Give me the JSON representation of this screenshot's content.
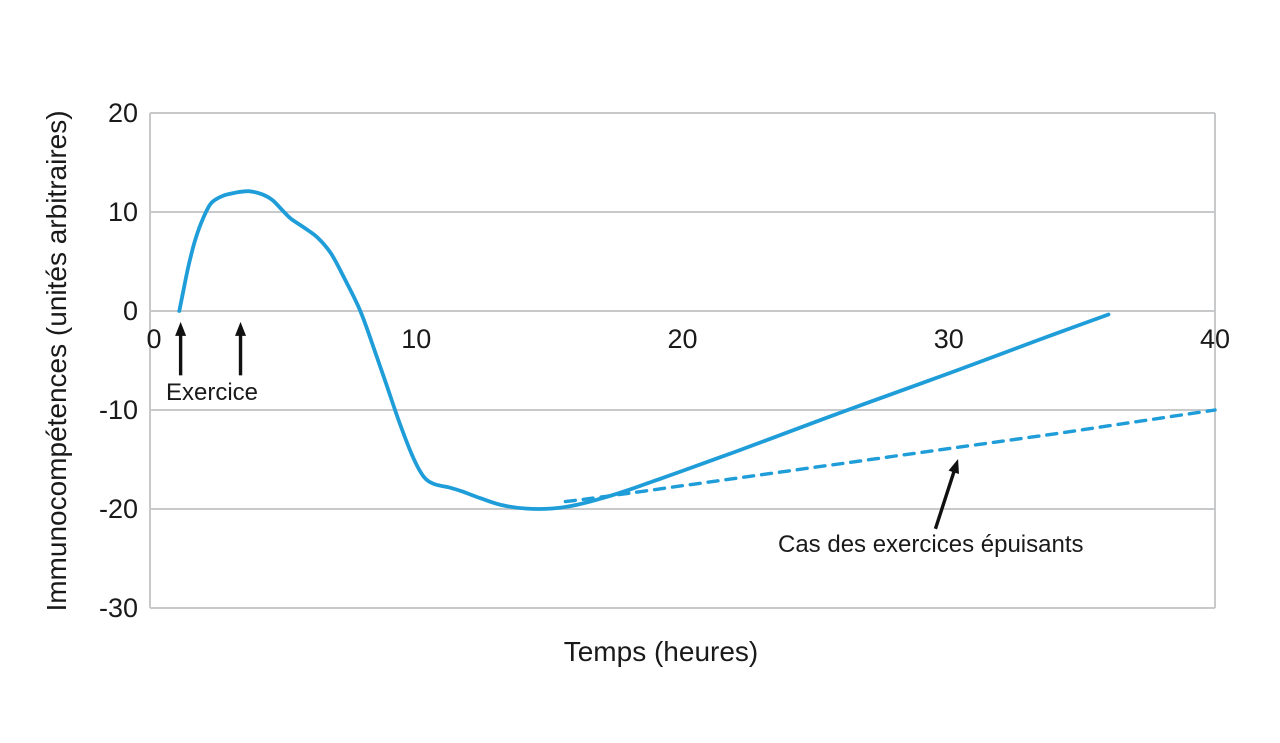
{
  "colors": {
    "curve": "#1E9DD8",
    "grid": "#C8C9CB",
    "text": "#1A1A1A",
    "background": "#FFFFFF",
    "arrow": "#111111"
  },
  "chart_data": {
    "type": "line",
    "title": "",
    "xlabel": "Temps (heures)",
    "ylabel": "Immunocompétences (unités arbitraires)",
    "xlim": [
      0,
      40
    ],
    "ylim": [
      -30,
      20
    ],
    "grid": "horizontal",
    "legend": "none",
    "x_ticks": {
      "values": [
        0,
        10,
        20,
        30,
        40
      ],
      "labels": [
        "0",
        "10",
        "20",
        "30",
        "40"
      ]
    },
    "y_ticks": {
      "values": [
        20,
        10,
        0,
        -10,
        -20,
        -30
      ],
      "labels": [
        "20",
        "10",
        "0",
        "-10",
        "-20",
        "-30"
      ]
    },
    "series": [
      {
        "id": "immune-response-curve",
        "style": "solid",
        "points": [
          [
            1.1,
            0
          ],
          [
            1.25,
            2.0
          ],
          [
            1.45,
            4.6
          ],
          [
            1.7,
            7.2
          ],
          [
            2.0,
            9.4
          ],
          [
            2.3,
            10.9
          ],
          [
            2.7,
            11.6
          ],
          [
            3.2,
            11.95
          ],
          [
            3.7,
            12.1
          ],
          [
            4.2,
            11.8
          ],
          [
            4.6,
            11.2
          ],
          [
            5.0,
            10.1
          ],
          [
            5.3,
            9.3
          ],
          [
            5.8,
            8.4
          ],
          [
            6.3,
            7.4
          ],
          [
            6.8,
            5.8
          ],
          [
            7.3,
            3.3
          ],
          [
            7.9,
            0.0
          ],
          [
            8.4,
            -3.7
          ],
          [
            8.9,
            -7.6
          ],
          [
            9.4,
            -11.5
          ],
          [
            9.9,
            -14.9
          ],
          [
            10.3,
            -16.8
          ],
          [
            10.7,
            -17.5
          ],
          [
            11.2,
            -17.8
          ],
          [
            11.7,
            -18.2
          ],
          [
            12.4,
            -18.9
          ],
          [
            13.2,
            -19.6
          ],
          [
            14.1,
            -19.95
          ],
          [
            15.1,
            -19.95
          ],
          [
            16.0,
            -19.6
          ],
          [
            17.0,
            -18.9
          ],
          [
            18.0,
            -18.05
          ],
          [
            19.0,
            -17.1
          ],
          [
            20.0,
            -16.15
          ],
          [
            22.0,
            -14.2
          ],
          [
            24.0,
            -12.2
          ],
          [
            26.0,
            -10.2
          ],
          [
            28.0,
            -8.25
          ],
          [
            30.0,
            -6.3
          ],
          [
            32.0,
            -4.3
          ],
          [
            34.0,
            -2.3
          ],
          [
            36.0,
            -0.35
          ]
        ]
      },
      {
        "id": "exhausting-exercise-curve",
        "style": "dashed",
        "points": [
          [
            15.6,
            -19.25
          ],
          [
            16.5,
            -18.95
          ],
          [
            18.0,
            -18.4
          ],
          [
            20.0,
            -17.65
          ],
          [
            22.0,
            -16.9
          ],
          [
            24.0,
            -16.15
          ],
          [
            26.0,
            -15.4
          ],
          [
            28.0,
            -14.65
          ],
          [
            30.0,
            -13.9
          ],
          [
            32.0,
            -13.15
          ],
          [
            34.0,
            -12.4
          ],
          [
            36.0,
            -11.6
          ],
          [
            38.0,
            -10.8
          ],
          [
            40.0,
            -10.0
          ]
        ]
      }
    ],
    "annotations": {
      "exercise": {
        "label": "Exercice",
        "arrow_times": [
          1.15,
          3.4
        ],
        "arrow_y_from": -6.5,
        "arrow_y_to": -1.1
      },
      "exhausting": {
        "label": "Cas des exercices épuisants",
        "arrow_from": [
          29.5,
          -22.0
        ],
        "arrow_to": [
          30.35,
          -14.95
        ]
      }
    }
  }
}
